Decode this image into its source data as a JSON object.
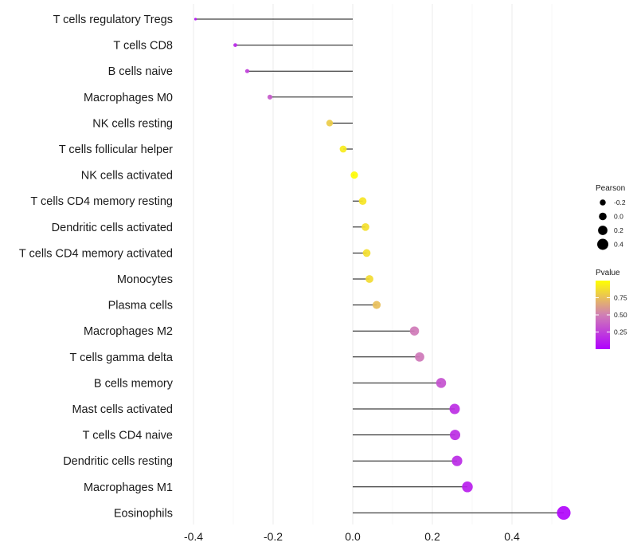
{
  "chart_data": {
    "type": "lollipop",
    "title": "",
    "xlabel": "",
    "ylabel": "",
    "xlim": [
      -0.42,
      0.55
    ],
    "x_ticks": [
      -0.4,
      -0.2,
      0.0,
      0.2,
      0.4
    ],
    "x_tick_labels": [
      "-0.4",
      "-0.2",
      "0.0",
      "0.2",
      "0.4"
    ],
    "grid": "vertical",
    "categories": [
      "T cells regulatory  Tregs",
      "T cells CD8",
      "B cells naive",
      "Macrophages M0",
      "NK cells resting",
      "T cells follicular helper",
      "NK cells activated",
      "T cells CD4 memory resting",
      "Dendritic cells activated",
      "T cells CD4 memory activated",
      "Monocytes",
      "Plasma cells",
      "Macrophages M2",
      "T cells gamma delta",
      "B cells memory",
      "Mast cells activated",
      "T cells CD4 naive",
      "Dendritic cells resting",
      "Macrophages M1",
      "Eosinophils"
    ],
    "pearson": [
      -0.395,
      -0.295,
      -0.265,
      -0.208,
      -0.058,
      -0.024,
      0.004,
      0.025,
      0.032,
      0.035,
      0.042,
      0.06,
      0.155,
      0.168,
      0.222,
      0.256,
      0.257,
      0.262,
      0.288,
      0.53
    ],
    "pvalue": [
      0.08,
      0.15,
      0.25,
      0.35,
      0.8,
      0.92,
      0.99,
      0.9,
      0.88,
      0.87,
      0.86,
      0.75,
      0.48,
      0.47,
      0.32,
      0.18,
      0.18,
      0.17,
      0.12,
      0.02
    ],
    "legends": {
      "size": {
        "title": "Pearson",
        "values": [
          -0.2,
          0.0,
          0.2,
          0.4
        ],
        "labels": [
          "-0.2",
          "0.0",
          "0.2",
          "0.4"
        ]
      },
      "color": {
        "title": "Pvalue",
        "range": [
          0.0,
          1.0
        ],
        "ticks": [
          0.25,
          0.5,
          0.75
        ],
        "tick_labels": [
          "0.25",
          "0.50",
          "0.75"
        ],
        "low_color": "#b000ff",
        "mid_color": "#d07fb4",
        "high_color": "#ffff00"
      }
    }
  }
}
